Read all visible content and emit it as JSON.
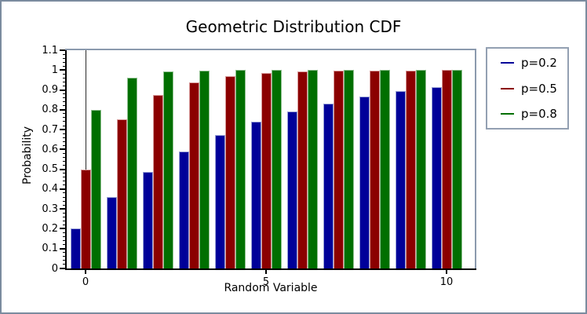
{
  "figure": {
    "background": "#ffffff",
    "border_color": "#7b8b9f"
  },
  "chart_data": {
    "type": "bar",
    "title": "Geometric Distribution CDF",
    "xlabel": "Random Variable",
    "ylabel": "Probability",
    "x": [
      0,
      1,
      2,
      3,
      4,
      5,
      6,
      7,
      8,
      9,
      10
    ],
    "series": [
      {
        "name": "p=0.2",
        "color": "#000099",
        "edge_color": "#9aa2d6",
        "values": [
          0.2,
          0.36,
          0.488,
          0.59,
          0.672,
          0.738,
          0.79,
          0.832,
          0.866,
          0.893,
          0.914
        ]
      },
      {
        "name": "p=0.5",
        "color": "#8b0000",
        "edge_color": "#d89a9a",
        "values": [
          0.5,
          0.75,
          0.875,
          0.938,
          0.969,
          0.984,
          0.992,
          0.996,
          0.998,
          0.999,
          1.0
        ]
      },
      {
        "name": "p=0.8",
        "color": "#006f00",
        "edge_color": "#8fc08f",
        "values": [
          0.8,
          0.96,
          0.992,
          0.998,
          1.0,
          1.0,
          1.0,
          1.0,
          1.0,
          1.0,
          1.0
        ]
      }
    ],
    "ylim": [
      0,
      1.1
    ],
    "yticks": [
      0,
      0.1,
      0.2,
      0.3,
      0.4,
      0.5,
      0.6,
      0.7,
      0.8,
      0.9,
      1.0,
      1.1
    ],
    "ytick_labels": [
      "0",
      "0.1",
      "0.2",
      "0.3",
      "0.4",
      "0.5",
      "0.6",
      "0.7",
      "0.8",
      "0.9",
      "1",
      "1.1"
    ],
    "y_minor_tick_step": 0.02,
    "xticks": [
      0,
      5,
      10
    ],
    "xtick_labels": [
      "0",
      "5",
      "10"
    ],
    "grid": false,
    "legend_position": "outside-right",
    "zero_vline_at_x": 0,
    "axis_colors": {
      "left_bottom": "#000000",
      "top_right": "#8b9aae"
    }
  }
}
